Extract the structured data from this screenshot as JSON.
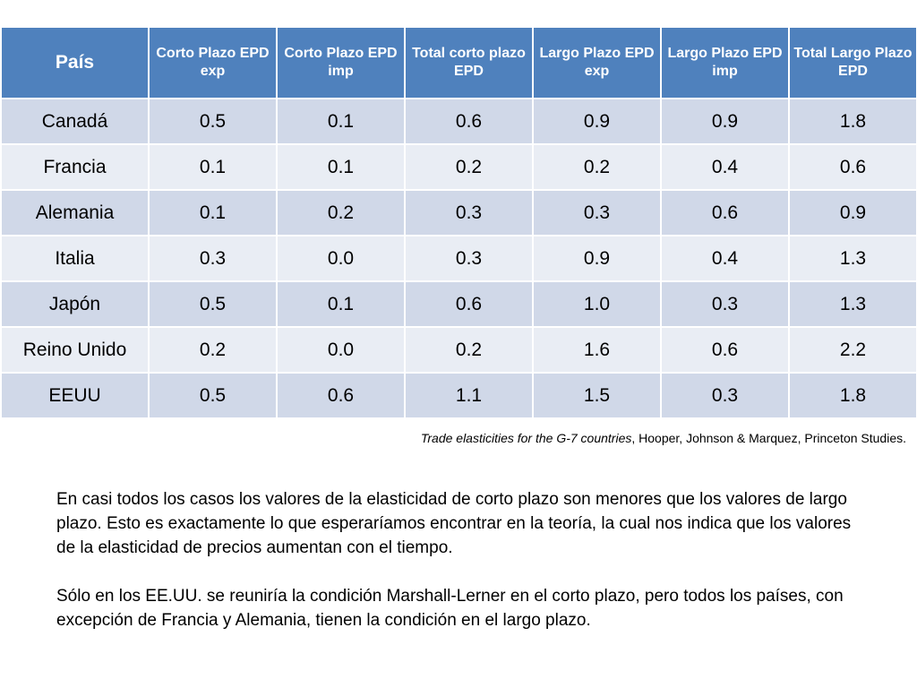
{
  "table": {
    "headers": [
      "País",
      "Corto Plazo EPD exp",
      "Corto Plazo EPD imp",
      "Total corto plazo EPD",
      "Largo Plazo EPD exp",
      "Largo Plazo EPD imp",
      "Total Largo Plazo EPD"
    ],
    "rows": [
      [
        "Canadá",
        "0.5",
        "0.1",
        "0.6",
        "0.9",
        "0.9",
        "1.8"
      ],
      [
        "Francia",
        "0.1",
        "0.1",
        "0.2",
        "0.2",
        "0.4",
        "0.6"
      ],
      [
        "Alemania",
        "0.1",
        "0.2",
        "0.3",
        "0.3",
        "0.6",
        "0.9"
      ],
      [
        "Italia",
        "0.3",
        "0.0",
        "0.3",
        "0.9",
        "0.4",
        "1.3"
      ],
      [
        "Japón",
        "0.5",
        "0.1",
        "0.6",
        "1.0",
        "0.3",
        "1.3"
      ],
      [
        "Reino Unido",
        "0.2",
        "0.0",
        "0.2",
        "1.6",
        "0.6",
        "2.2"
      ],
      [
        "EEUU",
        "0.5",
        "0.6",
        "1.1",
        "1.5",
        "0.3",
        "1.8"
      ]
    ],
    "colors": {
      "header_bg": "#4f81bd",
      "row_odd_bg": "#d0d8e8",
      "row_even_bg": "#e9edf4"
    }
  },
  "source": {
    "title": "Trade elasticities for the G-7 countries",
    "rest": ", Hooper, Johnson & Marquez, Princeton Studies."
  },
  "paragraphs": {
    "p1": "En casi todos los casos los valores de la elasticidad de corto plazo son menores que los valores de largo plazo. Esto es exactamente lo que esperaríamos encontrar en la teoría, la cual nos indica que los valores de la elasticidad de precios aumentan con el tiempo.",
    "p2": "Sólo en los EE.UU. se reuniría la condición Marshall-Lerner en el corto plazo, pero todos los países, con excepción de Francia y Alemania, tienen la condición en el largo plazo."
  }
}
